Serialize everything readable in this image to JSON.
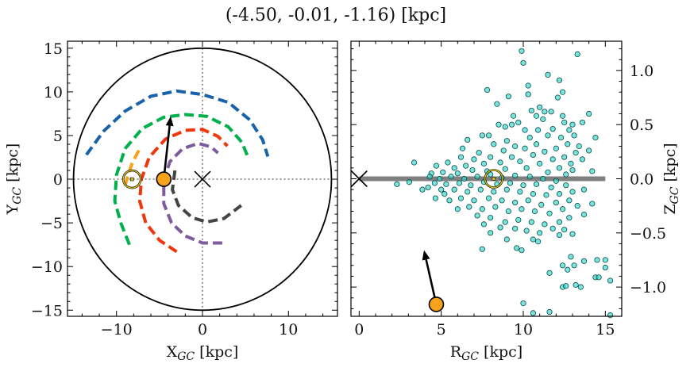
{
  "title": "(-4.50, -0.01, -1.16) [kpc]",
  "chart_data": [
    {
      "type": "line",
      "xlabel": "X_GC [kpc]",
      "ylabel": "Y_GC [kpc]",
      "xlim": [
        -15.7,
        15.7
      ],
      "ylim": [
        -15.7,
        15.8
      ],
      "xticks": [
        -10,
        0,
        10
      ],
      "yticks": [
        15,
        10,
        5,
        0,
        -5,
        -10,
        -15
      ],
      "xtick_labels": [
        "−10",
        "0",
        "10"
      ],
      "ytick_labels": [
        "15",
        "10",
        "5",
        "0",
        "−5",
        "−10",
        "−15"
      ],
      "grid": false,
      "boundary_circle_radius": 15,
      "galactic_center": [
        0,
        0
      ],
      "sun": [
        -8.2,
        0
      ],
      "object": [
        -4.5,
        0
      ],
      "arrow_tip": [
        -3.7,
        7.2
      ],
      "colors": {
        "object": "#f7a21b",
        "sun": "#d4c21a",
        "arrow": "#000000"
      },
      "series": [
        {
          "color": "#1762a8",
          "points": [
            [
              -13.5,
              2.8
            ],
            [
              -11.5,
              5.5
            ],
            [
              -9,
              7.8
            ],
            [
              -6,
              9.5
            ],
            [
              -3,
              10.1
            ],
            [
              0,
              9.7
            ],
            [
              3,
              8.8
            ],
            [
              5.5,
              6.8
            ],
            [
              7,
              4.5
            ],
            [
              7.6,
              2.6
            ]
          ]
        },
        {
          "color": "#00b04a",
          "points": [
            [
              -8.5,
              -7.5
            ],
            [
              -9.5,
              -5
            ],
            [
              -10.2,
              -2.5
            ],
            [
              -10,
              0.5
            ],
            [
              -9,
              3.5
            ],
            [
              -7,
              5.8
            ],
            [
              -4.5,
              7.1
            ],
            [
              -2,
              7.4
            ],
            [
              0.5,
              7.2
            ],
            [
              3,
              6
            ],
            [
              4.6,
              4.2
            ],
            [
              5.3,
              2.5
            ]
          ]
        },
        {
          "color": "#f0360c",
          "points": [
            [
              -3,
              -8.3
            ],
            [
              -5,
              -7
            ],
            [
              -6.6,
              -5
            ],
            [
              -7.3,
              -2.5
            ],
            [
              -7.1,
              0
            ],
            [
              -6.2,
              2.5
            ],
            [
              -4.3,
              4.6
            ],
            [
              -2,
              5.6
            ],
            [
              0,
              5.7
            ],
            [
              1.8,
              4.9
            ],
            [
              2.9,
              3.8
            ]
          ]
        },
        {
          "color": "#7d5b9c",
          "points": [
            [
              2.3,
              -7.3
            ],
            [
              0,
              -7.3
            ],
            [
              -2,
              -6.5
            ],
            [
              -3.6,
              -5
            ],
            [
              -4.5,
              -2.8
            ],
            [
              -4.5,
              -0.2
            ],
            [
              -3.8,
              2
            ],
            [
              -2.3,
              3.5
            ],
            [
              -0.5,
              4.1
            ],
            [
              1,
              3.7
            ],
            [
              1.8,
              3
            ]
          ]
        },
        {
          "color": "#444444",
          "points": [
            [
              -3.2,
              1
            ],
            [
              -3.5,
              -1.2
            ],
            [
              -2.8,
              -3
            ],
            [
              -1.2,
              -4.4
            ],
            [
              0.5,
              -4.9
            ],
            [
              2.5,
              -4.5
            ],
            [
              4.5,
              -3
            ]
          ]
        },
        {
          "color": "#f7a21b",
          "points": [
            [
              -7.4,
              3.3
            ],
            [
              -8.2,
              1.8
            ],
            [
              -8.8,
              0
            ],
            [
              -9.1,
              -1.1
            ]
          ]
        }
      ]
    },
    {
      "type": "scatter",
      "xlabel": "R_GC [kpc]",
      "ylabel": "Z_GC [kpc]",
      "xlim": [
        -0.5,
        16
      ],
      "ylim": [
        -1.27,
        1.27
      ],
      "xticks": [
        0,
        5,
        10,
        15
      ],
      "yticks": [
        1.0,
        0.5,
        0.0,
        -0.5,
        -1.0
      ],
      "xtick_labels": [
        "0",
        "5",
        "10",
        "15"
      ],
      "ytick_labels": [
        "1.0",
        "0.5",
        "0.0",
        "−0.5",
        "−1.0"
      ],
      "grid": false,
      "galactic_center": [
        0,
        0
      ],
      "disk_line": [
        [
          0,
          0
        ],
        [
          15,
          0
        ]
      ],
      "sun": [
        8.2,
        0
      ],
      "object": [
        4.7,
        -1.16
      ],
      "arrow_tip": [
        3.95,
        -0.66
      ],
      "colors": {
        "points": "#2fd6cc",
        "point_edge": "#0b4a48",
        "disk": "#808080",
        "object": "#f7a21b",
        "sun": "#d4c21a"
      },
      "points": [
        [
          9.9,
          1.18
        ],
        [
          13.3,
          1.15
        ],
        [
          10.0,
          1.07
        ],
        [
          11.5,
          0.96
        ],
        [
          12.2,
          0.91
        ],
        [
          7.8,
          0.82
        ],
        [
          10.3,
          0.86
        ],
        [
          12.4,
          0.8
        ],
        [
          10.3,
          0.78
        ],
        [
          9.1,
          0.76
        ],
        [
          8.4,
          0.69
        ],
        [
          12.1,
          0.75
        ],
        [
          14.0,
          0.6
        ],
        [
          14.4,
          0.38
        ],
        [
          14.0,
          0.26
        ],
        [
          3.35,
          0.15
        ],
        [
          2.3,
          -0.05
        ],
        [
          3.05,
          -0.03
        ],
        [
          3.85,
          -0.1
        ],
        [
          4.65,
          -0.18
        ],
        [
          7.5,
          -0.65
        ],
        [
          9.6,
          -0.64
        ],
        [
          9.9,
          -0.66
        ],
        [
          10.6,
          -0.56
        ],
        [
          11.6,
          -0.87
        ],
        [
          12.4,
          -0.8
        ],
        [
          12.9,
          -0.72
        ],
        [
          12.7,
          -0.84
        ],
        [
          13.1,
          -0.8
        ],
        [
          13.7,
          -0.76
        ],
        [
          14.5,
          -0.75
        ],
        [
          15.0,
          -0.75
        ],
        [
          15.0,
          -0.82
        ],
        [
          14.4,
          -0.91
        ],
        [
          14.6,
          -0.91
        ],
        [
          15.3,
          -0.94
        ],
        [
          12.4,
          -1.0
        ],
        [
          12.6,
          -0.99
        ],
        [
          13.2,
          -0.98
        ],
        [
          13.5,
          -1.0
        ],
        [
          10.0,
          -1.15
        ],
        [
          10.6,
          -1.24
        ],
        [
          11.6,
          -1.23
        ],
        [
          15.3,
          -1.26
        ],
        [
          14.2,
          -0.23
        ],
        [
          13.7,
          -0.33
        ],
        [
          13.0,
          -0.51
        ],
        [
          12.2,
          -0.52
        ],
        [
          13.7,
          -0.1
        ],
        [
          14.2,
          0.07
        ],
        [
          10.5,
          0.63
        ],
        [
          11.0,
          0.66
        ],
        [
          11.3,
          0.62
        ],
        [
          11.7,
          0.62
        ],
        [
          10.8,
          0.58
        ],
        [
          12.5,
          0.52
        ],
        [
          13.0,
          0.5
        ],
        [
          13.6,
          0.52
        ],
        [
          12.8,
          0.45
        ],
        [
          11.2,
          0.55
        ],
        [
          9.3,
          0.5
        ],
        [
          9.7,
          0.52
        ],
        [
          8.9,
          0.48
        ],
        [
          10.1,
          0.45
        ],
        [
          11.8,
          0.46
        ],
        [
          13.1,
          0.4
        ],
        [
          12.3,
          0.38
        ],
        [
          7.5,
          0.4
        ],
        [
          6.6,
          0.36
        ],
        [
          7.9,
          0.4
        ],
        [
          9.0,
          0.35
        ],
        [
          10.4,
          0.38
        ],
        [
          11.5,
          0.4
        ],
        [
          12.7,
          0.32
        ],
        [
          13.4,
          0.3
        ],
        [
          8.2,
          0.32
        ],
        [
          9.5,
          0.3
        ],
        [
          10.8,
          0.32
        ],
        [
          12.0,
          0.28
        ],
        [
          13.2,
          0.24
        ],
        [
          13.6,
          0.18
        ],
        [
          12.5,
          0.2
        ],
        [
          11.3,
          0.25
        ],
        [
          10.1,
          0.28
        ],
        [
          8.8,
          0.26
        ],
        [
          7.3,
          0.24
        ],
        [
          6.2,
          0.2
        ],
        [
          5.4,
          0.15
        ],
        [
          4.7,
          0.12
        ],
        [
          7.0,
          0.18
        ],
        [
          8.0,
          0.2
        ],
        [
          9.3,
          0.2
        ],
        [
          10.6,
          0.22
        ],
        [
          11.8,
          0.18
        ],
        [
          12.9,
          0.14
        ],
        [
          5.8,
          0.1
        ],
        [
          6.5,
          0.12
        ],
        [
          7.6,
          0.14
        ],
        [
          8.6,
          0.15
        ],
        [
          9.8,
          0.16
        ],
        [
          11.0,
          0.14
        ],
        [
          12.2,
          0.1
        ],
        [
          13.0,
          0.08
        ],
        [
          4.4,
          0.05
        ],
        [
          5.1,
          0.06
        ],
        [
          6.0,
          0.05
        ],
        [
          6.9,
          0.08
        ],
        [
          7.8,
          0.07
        ],
        [
          8.9,
          0.09
        ],
        [
          10.2,
          0.1
        ],
        [
          11.5,
          0.06
        ],
        [
          12.6,
          0.04
        ],
        [
          4.9,
          0.0
        ],
        [
          5.6,
          0.02
        ],
        [
          6.4,
          0.0
        ],
        [
          7.2,
          0.02
        ],
        [
          8.0,
          0.04
        ],
        [
          8.7,
          0.01
        ],
        [
          9.5,
          0.03
        ],
        [
          10.4,
          0.02
        ],
        [
          11.2,
          0.0
        ],
        [
          12.0,
          -0.02
        ],
        [
          5.3,
          -0.05
        ],
        [
          6.1,
          -0.04
        ],
        [
          6.8,
          -0.06
        ],
        [
          7.6,
          -0.03
        ],
        [
          8.4,
          -0.05
        ],
        [
          9.2,
          -0.04
        ],
        [
          10.0,
          -0.06
        ],
        [
          10.8,
          -0.05
        ],
        [
          11.7,
          -0.08
        ],
        [
          12.6,
          -0.06
        ],
        [
          4.6,
          -0.04
        ],
        [
          5.8,
          -0.1
        ],
        [
          6.6,
          -0.12
        ],
        [
          7.4,
          -0.1
        ],
        [
          8.2,
          -0.12
        ],
        [
          9.0,
          -0.1
        ],
        [
          9.8,
          -0.12
        ],
        [
          10.6,
          -0.14
        ],
        [
          11.4,
          -0.15
        ],
        [
          12.2,
          -0.14
        ],
        [
          13.0,
          -0.12
        ],
        [
          5.2,
          -0.14
        ],
        [
          6.2,
          -0.18
        ],
        [
          7.0,
          -0.2
        ],
        [
          7.9,
          -0.18
        ],
        [
          8.7,
          -0.2
        ],
        [
          9.5,
          -0.22
        ],
        [
          10.3,
          -0.2
        ],
        [
          11.1,
          -0.24
        ],
        [
          12.0,
          -0.22
        ],
        [
          12.8,
          -0.2
        ],
        [
          5.5,
          -0.2
        ],
        [
          6.7,
          -0.26
        ],
        [
          7.5,
          -0.28
        ],
        [
          8.3,
          -0.26
        ],
        [
          9.1,
          -0.3
        ],
        [
          9.9,
          -0.28
        ],
        [
          10.7,
          -0.3
        ],
        [
          11.6,
          -0.32
        ],
        [
          12.4,
          -0.28
        ],
        [
          13.3,
          -0.25
        ],
        [
          7.2,
          -0.34
        ],
        [
          8.0,
          -0.36
        ],
        [
          8.9,
          -0.4
        ],
        [
          9.7,
          -0.38
        ],
        [
          10.5,
          -0.4
        ],
        [
          11.3,
          -0.42
        ],
        [
          12.2,
          -0.4
        ],
        [
          12.8,
          -0.36
        ],
        [
          7.6,
          -0.42
        ],
        [
          8.6,
          -0.45
        ],
        [
          9.5,
          -0.46
        ],
        [
          10.2,
          -0.48
        ],
        [
          11.0,
          -0.5
        ],
        [
          11.8,
          -0.46
        ],
        [
          12.5,
          -0.47
        ],
        [
          9.0,
          -0.56
        ],
        [
          10.9,
          -0.58
        ],
        [
          8.0,
          -0.5
        ],
        [
          6.0,
          -0.28
        ],
        [
          5.0,
          -0.1
        ],
        [
          4.3,
          0.02
        ],
        [
          4.2,
          -0.08
        ],
        [
          6.3,
          0.28
        ],
        [
          9.4,
          0.58
        ],
        [
          10.9,
          0.45
        ],
        [
          12.4,
          0.58
        ],
        [
          8.5,
          0.5
        ]
      ]
    }
  ]
}
